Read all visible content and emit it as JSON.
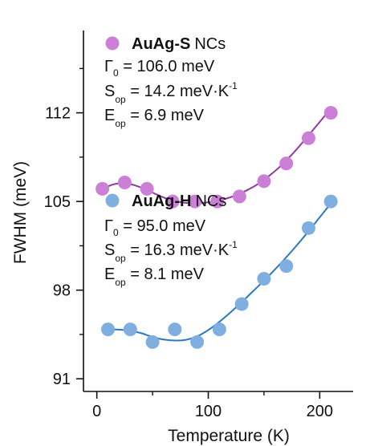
{
  "chart_data": {
    "type": "scatter",
    "xlabel": "Temperature (K)",
    "ylabel": "FWHM (meV)",
    "xlim": [
      -12,
      230
    ],
    "ylim": [
      90,
      118.5
    ],
    "xticks": [
      0,
      100,
      200
    ],
    "xminor": [
      50,
      150
    ],
    "yticks": [
      91,
      98,
      105,
      112
    ],
    "yminor": [
      94.5,
      101.5,
      108.5,
      115.5
    ],
    "grid": false,
    "legend_placement": "inside",
    "series": [
      {
        "name": "AuAg-S",
        "name_suffix": "NCs",
        "color": "#cc7fd6",
        "line_color": "#8a3aa0",
        "x": [
          5,
          25,
          45,
          68,
          88,
          108,
          128,
          150,
          170,
          190,
          210
        ],
        "y": [
          106.0,
          106.5,
          106.0,
          105.0,
          105.0,
          105.0,
          105.4,
          106.6,
          108.0,
          110.0,
          112.0
        ],
        "fit": {
          "x": [
            5,
            15,
            25,
            35,
            45,
            55,
            65,
            75,
            85,
            95,
            105,
            115,
            125,
            135,
            145,
            155,
            165,
            175,
            185,
            195,
            205,
            210
          ],
          "y": [
            106.0,
            106.35,
            106.45,
            106.25,
            105.9,
            105.5,
            105.15,
            104.95,
            104.85,
            104.88,
            105.0,
            105.2,
            105.5,
            105.9,
            106.4,
            107.05,
            107.8,
            108.7,
            109.7,
            110.75,
            111.8,
            112.3
          ]
        },
        "params": [
          {
            "symbol": "Γ",
            "sub": "0",
            "value": " = 106.0 meV",
            "sup": ""
          },
          {
            "symbol": "S",
            "sub": "op",
            "value": " = 14.2 meV·K",
            "sup": "-1"
          },
          {
            "symbol": "E",
            "sub": "op",
            "value": " = 6.9 meV",
            "sup": ""
          }
        ]
      },
      {
        "name": "AuAg-H",
        "name_suffix": "NCs",
        "color": "#7faee0",
        "line_color": "#2b78c2",
        "x": [
          10,
          30,
          50,
          70,
          90,
          110,
          130,
          150,
          170,
          190,
          210
        ],
        "y": [
          94.9,
          94.9,
          93.9,
          94.9,
          93.9,
          94.9,
          96.9,
          98.9,
          99.9,
          102.9,
          105.0
        ],
        "fit": {
          "x": [
            10,
            20,
            30,
            40,
            50,
            60,
            70,
            80,
            90,
            100,
            110,
            120,
            130,
            140,
            150,
            160,
            170,
            180,
            190,
            200,
            210
          ],
          "y": [
            94.9,
            94.88,
            94.8,
            94.6,
            94.3,
            94.1,
            94.02,
            94.08,
            94.35,
            94.85,
            95.5,
            96.25,
            97.05,
            97.9,
            98.75,
            99.65,
            100.6,
            101.6,
            102.65,
            103.75,
            104.85
          ]
        },
        "params": [
          {
            "symbol": "Γ",
            "sub": "0",
            "value": " = 95.0 meV",
            "sup": ""
          },
          {
            "symbol": "S",
            "sub": "op",
            "value": " = 16.3 meV·K",
            "sup": "-1"
          },
          {
            "symbol": "E",
            "sub": "op",
            "value": " = 8.1 meV",
            "sup": ""
          }
        ]
      }
    ]
  }
}
